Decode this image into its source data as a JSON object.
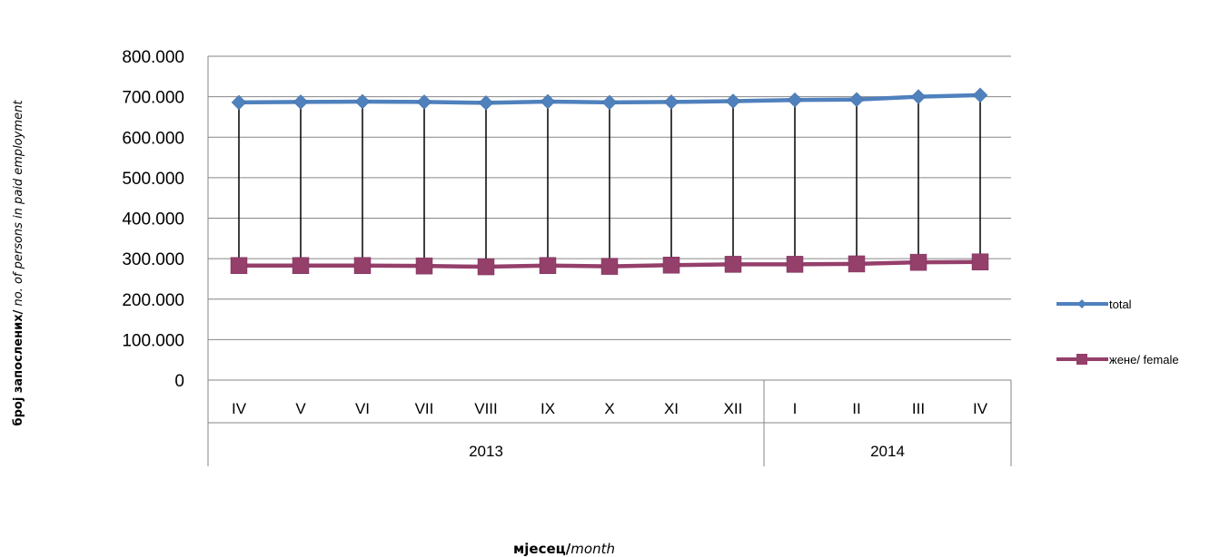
{
  "chart_data": {
    "type": "line",
    "categories": [
      "IV",
      "V",
      "VI",
      "VII",
      "VIII",
      "IX",
      "X",
      "XI",
      "XII",
      "I",
      "II",
      "III",
      "IV"
    ],
    "category_groups": [
      {
        "label": "2013",
        "span": 9
      },
      {
        "label": "2014",
        "span": 4
      }
    ],
    "series": [
      {
        "name": "total",
        "color": "#4f81bd",
        "marker": "diamond",
        "values": [
          686000,
          687000,
          688000,
          687000,
          685000,
          688000,
          686000,
          687000,
          689000,
          692000,
          693000,
          700000,
          704000
        ]
      },
      {
        "name": "жене/ female",
        "color": "#953f6b",
        "marker": "square",
        "values": [
          283000,
          283000,
          283000,
          282000,
          280000,
          283000,
          281000,
          284000,
          286000,
          286000,
          287000,
          291000,
          292000
        ]
      }
    ],
    "y_ticks": [
      "0",
      "100.000",
      "200.000",
      "300.000",
      "400.000",
      "500.000",
      "600.000",
      "700.000",
      "800.000"
    ],
    "ylim": [
      0,
      800000
    ],
    "drop_lines": true,
    "grid": true,
    "legend_position": "right",
    "ylabel": {
      "bold": "број запослених/",
      "italic": " no. of  persons  in paid employment"
    },
    "xlabel": {
      "bold": "мјесец/",
      "italic": "month"
    }
  }
}
